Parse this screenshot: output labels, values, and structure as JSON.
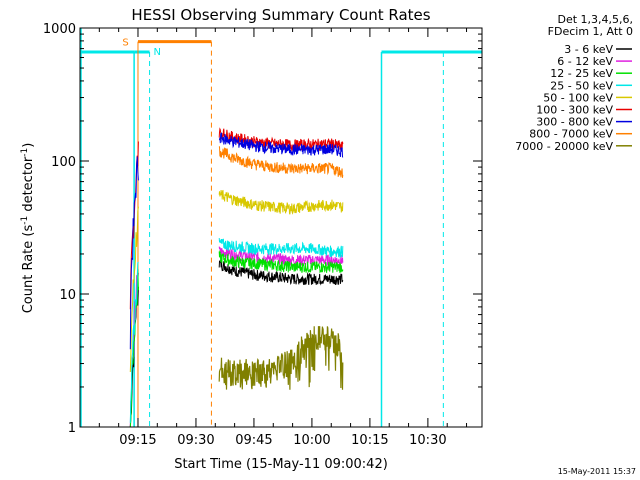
{
  "chart_data": {
    "type": "line",
    "title": "HESSI Observing Summary Count Rates",
    "xlabel": "Start Time (15-May-11 09:00:42)",
    "ylabel": "Count Rate (s⁻¹ detector⁻¹)",
    "ylabel_main": "Count Rate (s",
    "ylabel_sup1": "-1",
    "ylabel_mid": " detector",
    "ylabel_sup2": "-1",
    "ylabel_end": ")",
    "yscale": "log",
    "ylim": [
      1,
      1000
    ],
    "xlim": [
      "09:00",
      "10:44"
    ],
    "x_ticks": [
      "09:15",
      "09:30",
      "09:45",
      "10:00",
      "10:15",
      "10:30"
    ],
    "y_ticks": [
      "1",
      "10",
      "100",
      "1000"
    ],
    "grid": false,
    "legend_position": "right",
    "legend_header": [
      "Det 1,3,4,5,6,",
      "FDecim 1, Att 0"
    ],
    "legend": [
      {
        "label": "3 - 6 keV",
        "color": "#000000"
      },
      {
        "label": "6 - 12 keV",
        "color": "#e020e0"
      },
      {
        "label": "12 - 25 keV",
        "color": "#00e000"
      },
      {
        "label": "25 - 50 keV",
        "color": "#00e8e8"
      },
      {
        "label": "50 - 100 keV",
        "color": "#d8c800"
      },
      {
        "label": "100 - 300 keV",
        "color": "#e80000"
      },
      {
        "label": "300 - 800 keV",
        "color": "#0000e0"
      },
      {
        "label": "800 - 7000 keV",
        "color": "#ff8000"
      },
      {
        "label": "7000 - 20000 keV",
        "color": "#808000"
      }
    ],
    "markers": [
      {
        "label": "S",
        "color": "#ff8000"
      },
      {
        "label": "N",
        "color": "#00e8e8"
      }
    ],
    "series": [
      {
        "name": "3 - 6 keV",
        "color": "#000000",
        "x": [
          "09:36",
          "09:40",
          "09:45",
          "09:50",
          "09:55",
          "10:00",
          "10:05",
          "10:08"
        ],
        "values": [
          17,
          15,
          14,
          13.5,
          13,
          13,
          13,
          13
        ]
      },
      {
        "name": "6 - 12 keV",
        "color": "#e020e0",
        "x": [
          "09:36",
          "09:40",
          "09:45",
          "09:50",
          "09:55",
          "10:00",
          "10:05",
          "10:08"
        ],
        "values": [
          21,
          20,
          19,
          18.5,
          18,
          18,
          18,
          18
        ]
      },
      {
        "name": "12 - 25 keV",
        "color": "#00e000",
        "x": [
          "09:36",
          "09:40",
          "09:45",
          "09:50",
          "09:55",
          "10:00",
          "10:05",
          "10:08"
        ],
        "values": [
          19,
          17.5,
          17,
          16.5,
          16,
          16,
          16,
          16
        ]
      },
      {
        "name": "25 - 50 keV",
        "color": "#00e8e8",
        "x": [
          "09:36",
          "09:40",
          "09:45",
          "09:50",
          "09:55",
          "10:00",
          "10:05",
          "10:08"
        ],
        "values": [
          24,
          23,
          22,
          22,
          22,
          22,
          21,
          21
        ]
      },
      {
        "name": "50 - 100 keV",
        "color": "#d8c800",
        "x": [
          "09:36",
          "09:40",
          "09:45",
          "09:50",
          "09:55",
          "10:00",
          "10:05",
          "10:08"
        ],
        "values": [
          56,
          51,
          47,
          45,
          44,
          46,
          47,
          45
        ]
      },
      {
        "name": "100 - 300 keV",
        "color": "#e80000",
        "x": [
          "09:36",
          "09:40",
          "09:45",
          "09:50",
          "09:55",
          "10:00",
          "10:05",
          "10:08"
        ],
        "values": [
          165,
          150,
          140,
          135,
          132,
          133,
          135,
          128
        ]
      },
      {
        "name": "300 - 800 keV",
        "color": "#0000e0",
        "x": [
          "09:36",
          "09:40",
          "09:45",
          "09:50",
          "09:55",
          "10:00",
          "10:05",
          "10:08"
        ],
        "values": [
          150,
          140,
          130,
          125,
          122,
          122,
          123,
          118
        ]
      },
      {
        "name": "800 - 7000 keV",
        "color": "#ff8000",
        "x": [
          "09:36",
          "09:40",
          "09:45",
          "09:50",
          "09:55",
          "10:00",
          "10:05",
          "10:08"
        ],
        "values": [
          120,
          105,
          95,
          90,
          88,
          88,
          88,
          82
        ]
      },
      {
        "name": "7000 - 20000 keV",
        "color": "#808000",
        "x": [
          "09:36",
          "09:40",
          "09:45",
          "09:50",
          "09:55",
          "10:00",
          "10:05",
          "10:08"
        ],
        "values": [
          2.7,
          2.6,
          2.6,
          2.6,
          3.2,
          4.6,
          4.6,
          3.8
        ]
      }
    ],
    "early_burst": {
      "x": [
        "09:13",
        "09:14",
        "09:15"
      ],
      "values": [
        6,
        40,
        110
      ]
    }
  },
  "timestamp": "15-May-2011 15:37"
}
